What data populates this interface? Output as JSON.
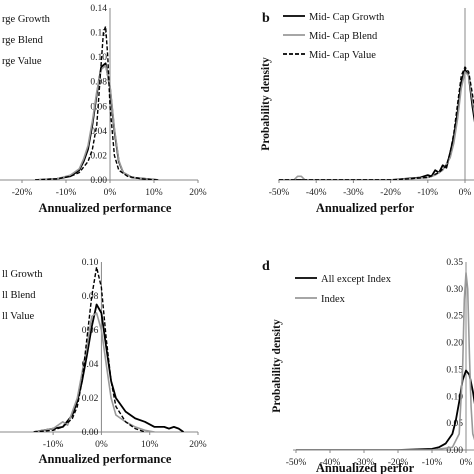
{
  "chart_data": [
    {
      "panel": "",
      "type": "line",
      "xlabel": "Annualized performance",
      "ylabel": "",
      "xlim": [
        -0.5,
        0.2
      ],
      "ylim": [
        0,
        0.14
      ],
      "x_ticks": [
        "-20%",
        "-10%",
        "0%",
        "10%",
        "20%"
      ],
      "x_tick_values": [
        -0.2,
        -0.1,
        0.0,
        0.1,
        0.2
      ],
      "y_ticks": [
        "0.00",
        "0.02",
        "0.04",
        "0.06",
        "0.08",
        "0.10",
        "0.12",
        "0.14"
      ],
      "y_tick_values": [
        0,
        0.02,
        0.04,
        0.06,
        0.08,
        0.1,
        0.12,
        0.14
      ],
      "legend": [
        "rge Growth",
        "rge Blend",
        "rge Value"
      ],
      "series": [
        {
          "name": "rge Growth",
          "color": "#000000",
          "dash": "solid",
          "x": [
            -0.17,
            -0.12,
            -0.09,
            -0.07,
            -0.06,
            -0.05,
            -0.04,
            -0.03,
            -0.02,
            -0.01,
            0.0,
            0.01,
            0.02,
            0.03,
            0.05,
            0.08,
            0.11
          ],
          "y": [
            0,
            0.001,
            0.003,
            0.008,
            0.015,
            0.025,
            0.045,
            0.07,
            0.092,
            0.095,
            0.075,
            0.04,
            0.015,
            0.006,
            0.002,
            0.001,
            0
          ]
        },
        {
          "name": "rge Blend",
          "color": "#999999",
          "dash": "solid",
          "x": [
            -0.17,
            -0.12,
            -0.09,
            -0.07,
            -0.06,
            -0.05,
            -0.04,
            -0.03,
            -0.02,
            -0.01,
            0.0,
            0.01,
            0.02,
            0.03,
            0.05,
            0.08,
            0.11
          ],
          "y": [
            0,
            0.001,
            0.004,
            0.009,
            0.017,
            0.028,
            0.048,
            0.072,
            0.09,
            0.093,
            0.077,
            0.042,
            0.016,
            0.006,
            0.002,
            0.001,
            0
          ]
        },
        {
          "name": "rge Value",
          "color": "#000000",
          "dash": "dashed",
          "x": [
            -0.17,
            -0.12,
            -0.09,
            -0.07,
            -0.05,
            -0.04,
            -0.03,
            -0.025,
            -0.02,
            -0.015,
            -0.01,
            -0.005,
            0.0,
            0.01,
            0.02,
            0.04,
            0.07,
            0.11
          ],
          "y": [
            0,
            0.001,
            0.003,
            0.006,
            0.015,
            0.025,
            0.045,
            0.07,
            0.095,
            0.12,
            0.125,
            0.1,
            0.06,
            0.02,
            0.008,
            0.003,
            0.001,
            0
          ]
        }
      ]
    },
    {
      "panel": "b",
      "type": "line",
      "xlabel": "Annualized perfor",
      "ylabel": "Probability density",
      "xlim": [
        -0.5,
        0.03
      ],
      "ylim": [
        0,
        0.14
      ],
      "x_ticks": [
        "-50%",
        "-40%",
        "-30%",
        "-20%",
        "-10%",
        "0%"
      ],
      "x_tick_values": [
        -0.5,
        -0.4,
        -0.3,
        -0.2,
        -0.1,
        0.0
      ],
      "y_ticks": [],
      "y_tick_values": [],
      "legend": [
        "Mid- Cap Growth",
        "Mid- Cap Blend",
        "Mid- Cap Value"
      ],
      "series": [
        {
          "name": "Mid- Cap Growth",
          "color": "#000000",
          "dash": "solid",
          "x": [
            -0.5,
            -0.2,
            -0.12,
            -0.1,
            -0.09,
            -0.08,
            -0.07,
            -0.06,
            -0.05,
            -0.04,
            -0.03,
            -0.02,
            -0.01,
            0.0,
            0.01,
            0.02,
            0.03
          ],
          "y": [
            0,
            0,
            0.002,
            0.004,
            0.003,
            0.008,
            0.006,
            0.012,
            0.01,
            0.022,
            0.035,
            0.055,
            0.08,
            0.09,
            0.085,
            0.06,
            0.04
          ]
        },
        {
          "name": "Mid- Cap Blend",
          "color": "#999999",
          "dash": "solid",
          "x": [
            -0.5,
            -0.46,
            -0.45,
            -0.44,
            -0.43,
            -0.2,
            -0.1,
            -0.08,
            -0.06,
            -0.04,
            -0.03,
            -0.02,
            -0.01,
            0.0,
            0.01,
            0.02,
            0.03
          ],
          "y": [
            0,
            0,
            0.003,
            0.003,
            0,
            0,
            0.002,
            0.004,
            0.008,
            0.018,
            0.03,
            0.05,
            0.075,
            0.088,
            0.085,
            0.065,
            0.045
          ]
        },
        {
          "name": "Mid- Cap Value",
          "color": "#000000",
          "dash": "dashed",
          "x": [
            -0.5,
            -0.2,
            -0.1,
            -0.07,
            -0.05,
            -0.04,
            -0.03,
            -0.02,
            -0.01,
            0.0,
            0.01,
            0.02,
            0.03
          ],
          "y": [
            0,
            0,
            0.002,
            0.006,
            0.012,
            0.022,
            0.038,
            0.062,
            0.085,
            0.092,
            0.088,
            0.07,
            0.05
          ]
        }
      ]
    },
    {
      "panel": "",
      "type": "line",
      "xlabel": "Annualized performance",
      "ylabel": "",
      "xlim": [
        -0.5,
        0.2
      ],
      "ylim": [
        0,
        0.1
      ],
      "x_ticks": [
        "-10%",
        "0%",
        "10%",
        "20%"
      ],
      "x_tick_values": [
        -0.1,
        0.0,
        0.1,
        0.2
      ],
      "y_ticks": [
        "0.00",
        "0.02",
        "0.04",
        "0.06",
        "0.08",
        "0.10"
      ],
      "y_tick_values": [
        0,
        0.02,
        0.04,
        0.06,
        0.08,
        0.1
      ],
      "legend": [
        "ll Growth",
        "ll Blend",
        "ll Value"
      ],
      "series": [
        {
          "name": "ll Growth",
          "color": "#000000",
          "dash": "solid",
          "x": [
            -0.14,
            -0.1,
            -0.08,
            -0.06,
            -0.05,
            -0.04,
            -0.03,
            -0.02,
            -0.01,
            0.0,
            0.01,
            0.02,
            0.03,
            0.05,
            0.07,
            0.09,
            0.11,
            0.13,
            0.14,
            0.15,
            0.16,
            0.17
          ],
          "y": [
            0,
            0.002,
            0.003,
            0.01,
            0.018,
            0.03,
            0.045,
            0.062,
            0.075,
            0.07,
            0.05,
            0.03,
            0.02,
            0.012,
            0.008,
            0.006,
            0.003,
            0.003,
            0.002,
            0.003,
            0.002,
            0
          ]
        },
        {
          "name": "ll Blend",
          "color": "#999999",
          "dash": "solid",
          "x": [
            -0.14,
            -0.1,
            -0.08,
            -0.07,
            -0.06,
            -0.05,
            -0.04,
            -0.03,
            -0.02,
            -0.01,
            0.0,
            0.01,
            0.02,
            0.03,
            0.05,
            0.07,
            0.09,
            0.11
          ],
          "y": [
            0,
            0.002,
            0.006,
            0.004,
            0.012,
            0.02,
            0.035,
            0.05,
            0.068,
            0.07,
            0.06,
            0.04,
            0.02,
            0.01,
            0.006,
            0.003,
            0.001,
            0
          ]
        },
        {
          "name": "ll Value",
          "color": "#000000",
          "dash": "dashed",
          "x": [
            -0.14,
            -0.1,
            -0.08,
            -0.06,
            -0.05,
            -0.04,
            -0.03,
            -0.02,
            -0.01,
            0.0,
            0.01,
            0.02,
            0.03,
            0.05,
            0.07,
            0.09
          ],
          "y": [
            0,
            0.001,
            0.003,
            0.008,
            0.015,
            0.03,
            0.055,
            0.08,
            0.097,
            0.085,
            0.055,
            0.03,
            0.015,
            0.006,
            0.002,
            0
          ]
        }
      ]
    },
    {
      "panel": "d",
      "type": "line",
      "xlabel": "Annualized perfor",
      "ylabel": "Probability density",
      "xlim": [
        -0.5,
        0.03
      ],
      "ylim": [
        0,
        0.35
      ],
      "x_ticks": [
        "-50%",
        "-40%",
        "-30%",
        "-20%",
        "-10%",
        "0%"
      ],
      "x_tick_values": [
        -0.5,
        -0.4,
        -0.3,
        -0.2,
        -0.1,
        0.0
      ],
      "y_ticks": [
        "0.35",
        "0.30",
        "0.25",
        "0.20",
        "0.15",
        "0.10",
        "0.05",
        "0.00"
      ],
      "y_tick_values": [
        0.35,
        0.3,
        0.25,
        0.2,
        0.15,
        0.1,
        0.05,
        0.0
      ],
      "legend": [
        "All except Index",
        "Index"
      ],
      "series": [
        {
          "name": "All except Index",
          "color": "#000000",
          "dash": "solid",
          "x": [
            -0.5,
            -0.2,
            -0.1,
            -0.08,
            -0.06,
            -0.04,
            -0.03,
            -0.02,
            -0.01,
            0.0,
            0.01,
            0.02,
            0.03
          ],
          "y": [
            0,
            0,
            0.002,
            0.005,
            0.012,
            0.03,
            0.055,
            0.09,
            0.13,
            0.148,
            0.14,
            0.11,
            0.07
          ]
        },
        {
          "name": "Index",
          "color": "#999999",
          "dash": "solid",
          "x": [
            -0.5,
            -0.1,
            -0.04,
            -0.02,
            -0.01,
            -0.005,
            0.0,
            0.005,
            0.01,
            0.015,
            0.02,
            0.03
          ],
          "y": [
            0,
            0,
            0.005,
            0.03,
            0.15,
            0.28,
            0.33,
            0.3,
            0.18,
            0.08,
            0.03,
            0.01
          ]
        }
      ]
    }
  ]
}
